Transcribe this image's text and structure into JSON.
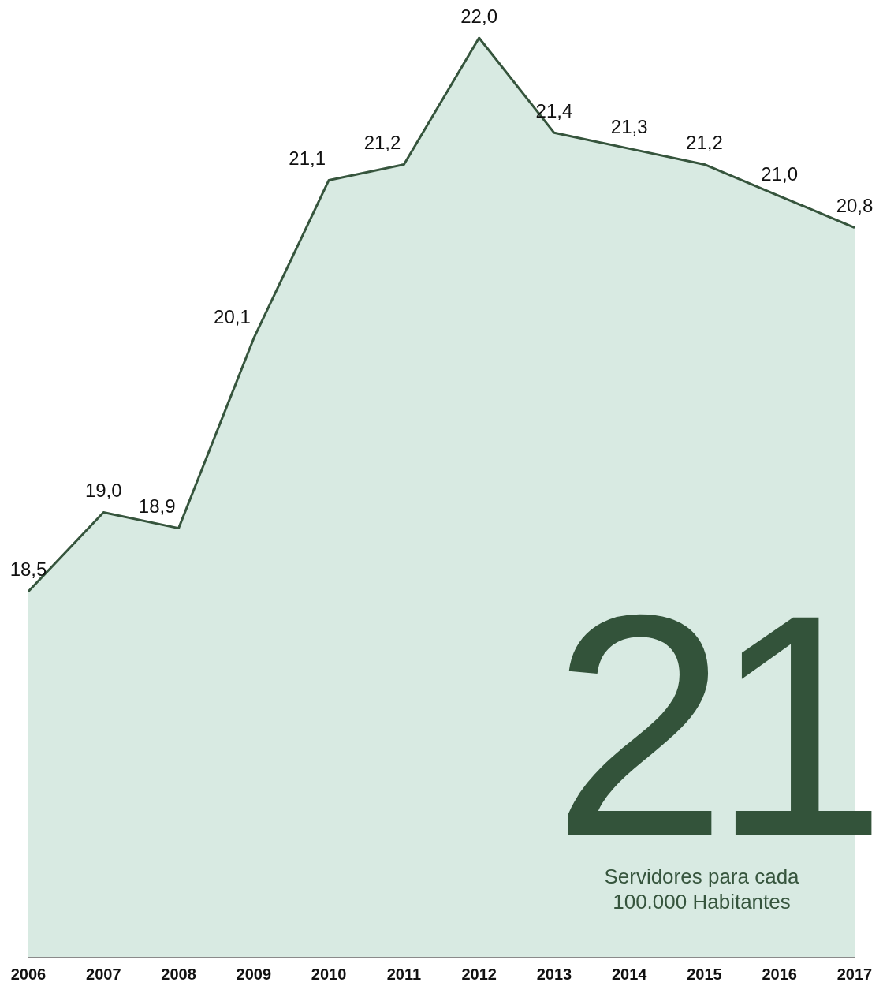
{
  "chart_data": {
    "type": "area",
    "categories": [
      "2006",
      "2007",
      "2008",
      "2009",
      "2010",
      "2011",
      "2012",
      "2013",
      "2014",
      "2015",
      "2016",
      "2017"
    ],
    "series": [
      {
        "color": "#36553d",
        "values": [
          18.5,
          19.0,
          18.9,
          20.1,
          21.1,
          21.2,
          22.0,
          21.4,
          21.3,
          21.2,
          21.0,
          20.8
        ],
        "value_labels": [
          "18,5",
          "19,0",
          "18,9",
          "20,1",
          "21,1",
          "21,2",
          "22,0",
          "21,4",
          "21,3",
          "21,2",
          "21,0",
          "20,8"
        ]
      }
    ],
    "tick_labels": "x",
    "grid": false,
    "legend": false,
    "marker": "none",
    "annotations": [
      "21",
      "Servidores para cada 100.000 Habitantes"
    ]
  }
}
